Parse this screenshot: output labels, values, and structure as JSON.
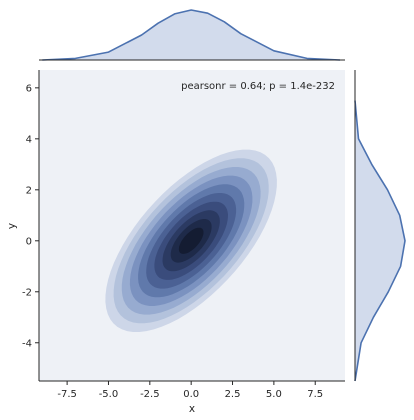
{
  "chart_data": {
    "type": "kde-joint",
    "annotation": "pearsonr = 0.64; p = 1.4e-232",
    "xlabel": "x",
    "ylabel": "y",
    "xlim": [
      -9.2,
      9.3
    ],
    "ylim": [
      -5.5,
      6.7
    ],
    "x_ticks": [
      -7.5,
      -5.0,
      -2.5,
      0.0,
      2.5,
      5.0,
      7.5
    ],
    "x_tick_labels": [
      "-7.5",
      "-5.0",
      "-2.5",
      "0.0",
      "2.5",
      "5.0",
      "7.5"
    ],
    "y_ticks": [
      -4,
      -2,
      0,
      2,
      4,
      6
    ],
    "y_tick_labels": [
      "-4",
      "-2",
      "0",
      "2",
      "4",
      "6"
    ],
    "center": [
      0.0,
      0.0
    ],
    "std_x": 2.1,
    "std_y": 1.45,
    "correlation": 0.64,
    "contour_levels": 10,
    "colors": {
      "line": "#4c72b0",
      "fill": "#d2dbec",
      "plot_bg": "#eef1f6",
      "contours": [
        "#cdd6e8",
        "#b3c2dc",
        "#97abd0",
        "#7b92c0",
        "#6079ab",
        "#4b6194",
        "#3a4c7c",
        "#2b3a62",
        "#1e2a49",
        "#141c32"
      ]
    },
    "marginal_x": {
      "x": [
        -9,
        -7,
        -5,
        -3,
        -2,
        -1,
        0,
        1,
        2,
        3,
        5,
        7,
        9
      ],
      "density": [
        0.0,
        0.006,
        0.03,
        0.095,
        0.14,
        0.175,
        0.19,
        0.178,
        0.145,
        0.1,
        0.035,
        0.006,
        0.0
      ]
    },
    "marginal_y": {
      "y": [
        -5.5,
        -4,
        -3,
        -2,
        -1,
        0,
        1,
        2,
        3,
        4,
        5.5
      ],
      "density": [
        0.0,
        0.035,
        0.105,
        0.19,
        0.26,
        0.285,
        0.255,
        0.185,
        0.095,
        0.02,
        0.0
      ]
    }
  }
}
